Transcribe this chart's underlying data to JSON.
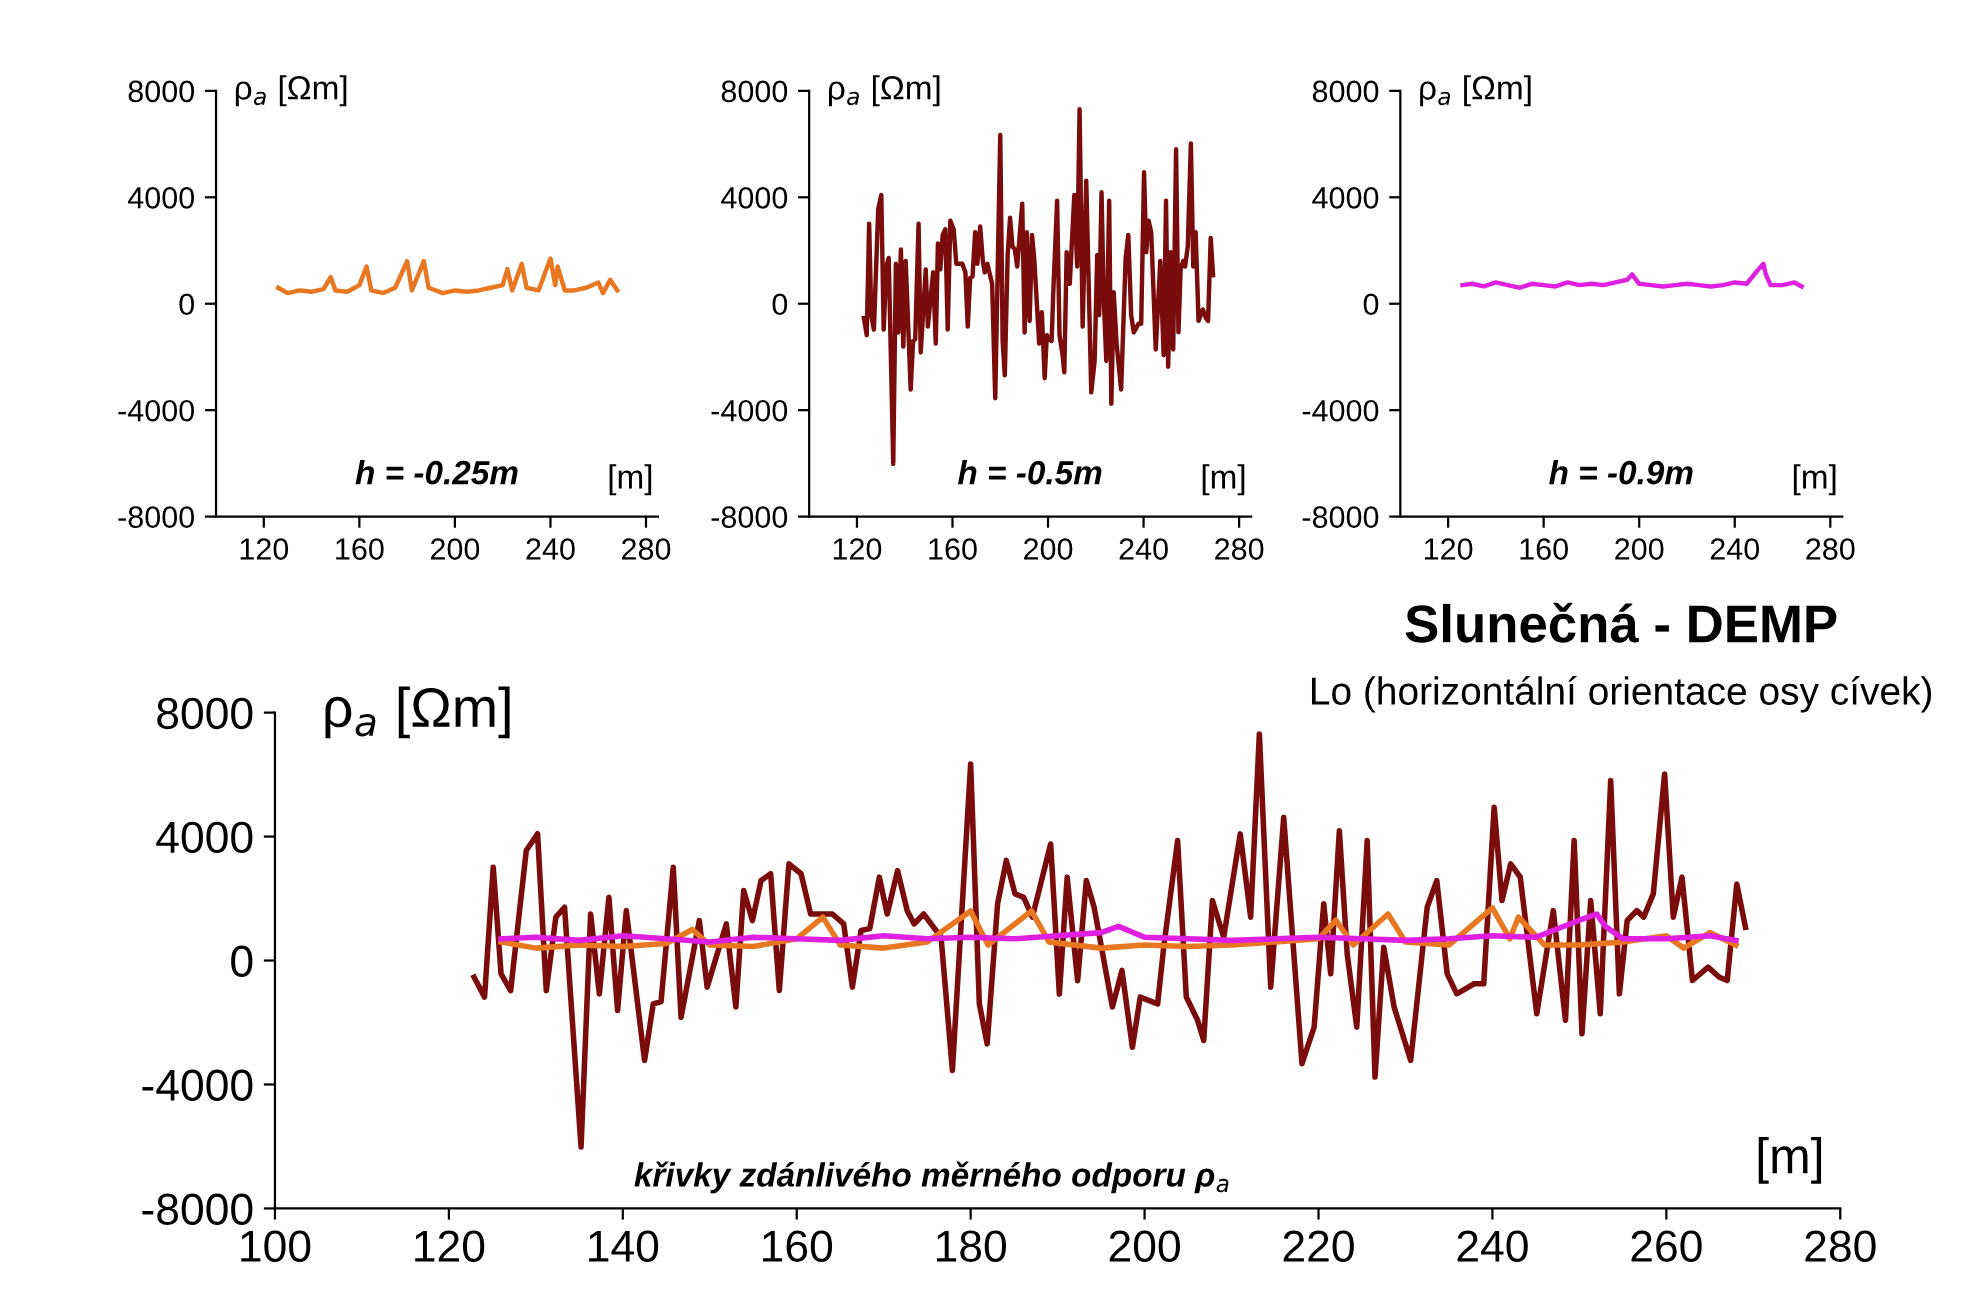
{
  "chart_data": [
    {
      "type": "line",
      "ylabel": "ρ$_{a}$ [Ωm]",
      "xlabel": "[m]",
      "annotations": [
        "h = -0.25m"
      ],
      "xlim": [
        100,
        285
      ],
      "xticks": [
        120,
        160,
        200,
        240,
        280
      ],
      "ylim": [
        -8000,
        8000
      ],
      "yticks": [
        -8000,
        -4000,
        0,
        4000,
        8000
      ],
      "grid": false,
      "legend": false,
      "series": [
        {
          "color": "#e87722",
          "x": [
            126,
            130,
            135,
            140,
            145,
            148,
            150,
            155,
            160,
            163,
            165,
            170,
            175,
            180,
            182,
            187,
            189,
            195,
            200,
            205,
            210,
            215,
            220,
            222,
            224,
            228,
            230,
            235,
            240,
            242,
            243,
            246,
            250,
            255,
            260,
            262,
            265,
            268
          ],
          "values": [
            600,
            400,
            500,
            450,
            550,
            1000,
            500,
            450,
            700,
            1400,
            500,
            400,
            600,
            1600,
            500,
            1600,
            600,
            400,
            500,
            450,
            500,
            600,
            700,
            1300,
            500,
            1500,
            600,
            500,
            1700,
            700,
            1400,
            500,
            500,
            600,
            800,
            400,
            900,
            500
          ]
        }
      ]
    },
    {
      "type": "line",
      "ylabel": "ρ$_{a}$ [Ωm]",
      "xlabel": "[m]",
      "annotations": [
        "h = -0.5m"
      ],
      "xlim": [
        100,
        285
      ],
      "xticks": [
        120,
        160,
        200,
        240,
        280
      ],
      "ylim": [
        -8000,
        8000
      ],
      "yticks": [
        -8000,
        -4000,
        0,
        4000,
        8000
      ],
      "grid": false,
      "legend": false,
      "series": [
        {
          "color": "#7b0c0c",
          "x": [
            122.9,
            124.1,
            125.1,
            126.0,
            127.1,
            128.9,
            130.2,
            131.2,
            132.3,
            133.3,
            135.2,
            136.3,
            137.3,
            138.4,
            139.4,
            140.4,
            142.5,
            143.5,
            144.4,
            145.8,
            146.7,
            148.8,
            149.7,
            151.9,
            153.0,
            153.9,
            154.9,
            155.9,
            157.0,
            158.0,
            159.1,
            160.5,
            161.6,
            164.1,
            165.4,
            166.4,
            167.4,
            168.4,
            169.5,
            170.4,
            171.6,
            172.7,
            173.5,
            174.6,
            176.6,
            177.9,
            180.0,
            181.0,
            181.9,
            183.1,
            184.1,
            185.1,
            186.1,
            187.1,
            189.2,
            190.2,
            191.1,
            192.3,
            193.3,
            194.2,
            196.3,
            197.4,
            198.6,
            199.5,
            201.5,
            202.2,
            203.8,
            204.8,
            206.1,
            206.8,
            207.8,
            209.1,
            211.0,
            212.2,
            213.2,
            214.5,
            216.0,
            218.1,
            219.5,
            220.6,
            221.4,
            222.4,
            223.3,
            224.4,
            225.6,
            226.5,
            227.5,
            228.7,
            230.6,
            232.5,
            233.6,
            234.8,
            235.9,
            237.9,
            239.0,
            240.2,
            241.1,
            242.1,
            243.2,
            245.1,
            247.0,
            248.4,
            249.4,
            250.3,
            251.3,
            252.4,
            253.6,
            254.6,
            255.5,
            256.6,
            257.4,
            258.5,
            259.8,
            260.8,
            261.8,
            263.0,
            264.8,
            266.1,
            267.0,
            268.1,
            269.1
          ],
          "values": [
            -540,
            -1180,
            3010,
            -430,
            -970,
            3550,
            4090,
            -970,
            1400,
            1720,
            -6020,
            1500,
            -1080,
            2040,
            -1610,
            1610,
            -3225,
            -1400,
            -1330,
            3010,
            -1830,
            1290,
            -860,
            1180,
            -1500,
            2260,
            1290,
            2580,
            2800,
            -970,
            3120,
            2800,
            1500,
            1500,
            1180,
            -860,
            970,
            1030,
            2690,
            1500,
            2900,
            1610,
            1180,
            1500,
            750,
            -3550,
            6340,
            -1400,
            -2690,
            1830,
            3230,
            2150,
            2040,
            1400,
            3760,
            -1080,
            2690,
            -650,
            2580,
            1720,
            -1500,
            -320,
            -2800,
            -1180,
            -1400,
            430,
            3870,
            -1180,
            -1930,
            -2580,
            1935,
            750,
            4085,
            1400,
            7310,
            -860,
            4620,
            -3330,
            -2150,
            1830,
            -430,
            4190,
            215,
            -2150,
            3870,
            -3760,
            430,
            -1505,
            -3225,
            1720,
            2580,
            -430,
            -1075,
            -750,
            -750,
            4945,
            1935,
            3120,
            2690,
            -1720,
            1610,
            -1935,
            3870,
            -2365,
            1935,
            -1720,
            5805,
            -1075,
            1290,
            1610,
            1400,
            2150,
            6020,
            1400,
            2690,
            -645,
            -215,
            -540,
            -645,
            2470,
            1075
          ]
        }
      ]
    },
    {
      "type": "line",
      "ylabel": "ρ$_{a}$ [Ωm]",
      "xlabel": "[m]",
      "annotations": [
        "h = -0.9m"
      ],
      "xlim": [
        100,
        285
      ],
      "xticks": [
        120,
        160,
        200,
        240,
        280
      ],
      "ylim": [
        -8000,
        8000
      ],
      "yticks": [
        -8000,
        -4000,
        0,
        4000,
        8000
      ],
      "grid": false,
      "legend": false,
      "series": [
        {
          "color": "#e020e0",
          "x": [
            126,
            130,
            135,
            140,
            145,
            150,
            155,
            160,
            165,
            170,
            175,
            180,
            185,
            190,
            195,
            197,
            200,
            205,
            210,
            215,
            220,
            225,
            230,
            235,
            240,
            245,
            250,
            252,
            253,
            255,
            260,
            265,
            268
          ],
          "values": [
            700,
            750,
            650,
            800,
            700,
            600,
            750,
            700,
            650,
            800,
            700,
            750,
            700,
            800,
            900,
            1100,
            750,
            700,
            650,
            700,
            750,
            700,
            650,
            700,
            800,
            750,
            1300,
            1500,
            1100,
            700,
            700,
            800,
            650
          ]
        }
      ]
    },
    {
      "type": "line",
      "title": "Slunečná - DEMP",
      "subtitle": "Lo (horizontální orientace osy cívek)",
      "ylabel": "ρ$_{a}$ [Ωm]",
      "xlabel": "[m]",
      "annotations": [
        "křivky zdánlivého měrného odporu ρ$_{a}$"
      ],
      "xlim": [
        100,
        280
      ],
      "xticks": [
        100,
        120,
        140,
        160,
        180,
        200,
        220,
        240,
        260,
        280
      ],
      "ylim": [
        -8000,
        8000
      ],
      "yticks": [
        -8000,
        -4000,
        0,
        4000,
        8000
      ],
      "grid": false,
      "legend": false,
      "series": [
        {
          "color": "#7b0c0c",
          "x": [
            122.9,
            124.1,
            125.1,
            126.0,
            127.1,
            128.9,
            130.2,
            131.2,
            132.3,
            133.3,
            135.2,
            136.3,
            137.3,
            138.4,
            139.4,
            140.4,
            142.5,
            143.5,
            144.4,
            145.8,
            146.7,
            148.8,
            149.7,
            151.9,
            153.0,
            153.9,
            154.9,
            155.9,
            157.0,
            158.0,
            159.1,
            160.5,
            161.6,
            164.1,
            165.4,
            166.4,
            167.4,
            168.4,
            169.5,
            170.4,
            171.6,
            172.7,
            173.5,
            174.6,
            176.6,
            177.9,
            180.0,
            181.0,
            181.9,
            183.1,
            184.1,
            185.1,
            186.1,
            187.1,
            189.2,
            190.2,
            191.1,
            192.3,
            193.3,
            194.2,
            196.3,
            197.4,
            198.6,
            199.5,
            201.5,
            202.2,
            203.8,
            204.8,
            206.1,
            206.8,
            207.8,
            209.1,
            211.0,
            212.2,
            213.2,
            214.5,
            216.0,
            218.1,
            219.5,
            220.6,
            221.4,
            222.4,
            223.3,
            224.4,
            225.6,
            226.5,
            227.5,
            228.7,
            230.6,
            232.5,
            233.6,
            234.8,
            235.9,
            237.9,
            239.0,
            240.2,
            241.1,
            242.1,
            243.2,
            245.1,
            247.0,
            248.4,
            249.4,
            250.3,
            251.3,
            252.4,
            253.6,
            254.6,
            255.5,
            256.6,
            257.4,
            258.5,
            259.8,
            260.8,
            261.8,
            263.0,
            264.8,
            266.1,
            267.0,
            268.1,
            269.1
          ],
          "values": [
            -540,
            -1180,
            3010,
            -430,
            -970,
            3550,
            4090,
            -970,
            1400,
            1720,
            -6020,
            1500,
            -1080,
            2040,
            -1610,
            1610,
            -3225,
            -1400,
            -1330,
            3010,
            -1830,
            1290,
            -860,
            1180,
            -1500,
            2260,
            1290,
            2580,
            2800,
            -970,
            3120,
            2800,
            1500,
            1500,
            1180,
            -860,
            970,
            1030,
            2690,
            1500,
            2900,
            1610,
            1180,
            1500,
            750,
            -3550,
            6340,
            -1400,
            -2690,
            1830,
            3230,
            2150,
            2040,
            1400,
            3760,
            -1080,
            2690,
            -650,
            2580,
            1720,
            -1500,
            -320,
            -2800,
            -1180,
            -1400,
            430,
            3870,
            -1180,
            -1930,
            -2580,
            1935,
            750,
            4085,
            1400,
            7310,
            -860,
            4620,
            -3330,
            -2150,
            1830,
            -430,
            4190,
            215,
            -2150,
            3870,
            -3760,
            430,
            -1505,
            -3225,
            1720,
            2580,
            -430,
            -1075,
            -750,
            -750,
            4945,
            1935,
            3120,
            2690,
            -1720,
            1610,
            -1935,
            3870,
            -2365,
            1935,
            -1720,
            5805,
            -1075,
            1290,
            1610,
            1400,
            2150,
            6020,
            1400,
            2690,
            -645,
            -215,
            -540,
            -645,
            2470,
            1075
          ]
        },
        {
          "color": "#e87722",
          "x": [
            126,
            130,
            135,
            140,
            145,
            148,
            150,
            155,
            160,
            163,
            165,
            170,
            175,
            180,
            182,
            187,
            189,
            195,
            200,
            205,
            210,
            215,
            220,
            222,
            224,
            228,
            230,
            235,
            240,
            242,
            243,
            246,
            250,
            255,
            260,
            262,
            265,
            268
          ],
          "values": [
            600,
            400,
            500,
            450,
            550,
            1000,
            500,
            450,
            700,
            1400,
            500,
            400,
            600,
            1600,
            500,
            1600,
            600,
            400,
            500,
            450,
            500,
            600,
            700,
            1300,
            500,
            1500,
            600,
            500,
            1700,
            700,
            1400,
            500,
            500,
            600,
            800,
            400,
            900,
            500
          ]
        },
        {
          "color": "#e020e0",
          "x": [
            126,
            130,
            135,
            140,
            145,
            150,
            155,
            160,
            165,
            170,
            175,
            180,
            185,
            190,
            195,
            197,
            200,
            205,
            210,
            215,
            220,
            225,
            230,
            235,
            240,
            245,
            250,
            252,
            253,
            255,
            260,
            265,
            268
          ],
          "values": [
            700,
            750,
            650,
            800,
            700,
            600,
            750,
            700,
            650,
            800,
            700,
            750,
            700,
            800,
            900,
            1100,
            750,
            700,
            650,
            700,
            750,
            700,
            650,
            700,
            800,
            750,
            1300,
            1500,
            1100,
            700,
            700,
            800,
            650
          ]
        }
      ]
    }
  ]
}
